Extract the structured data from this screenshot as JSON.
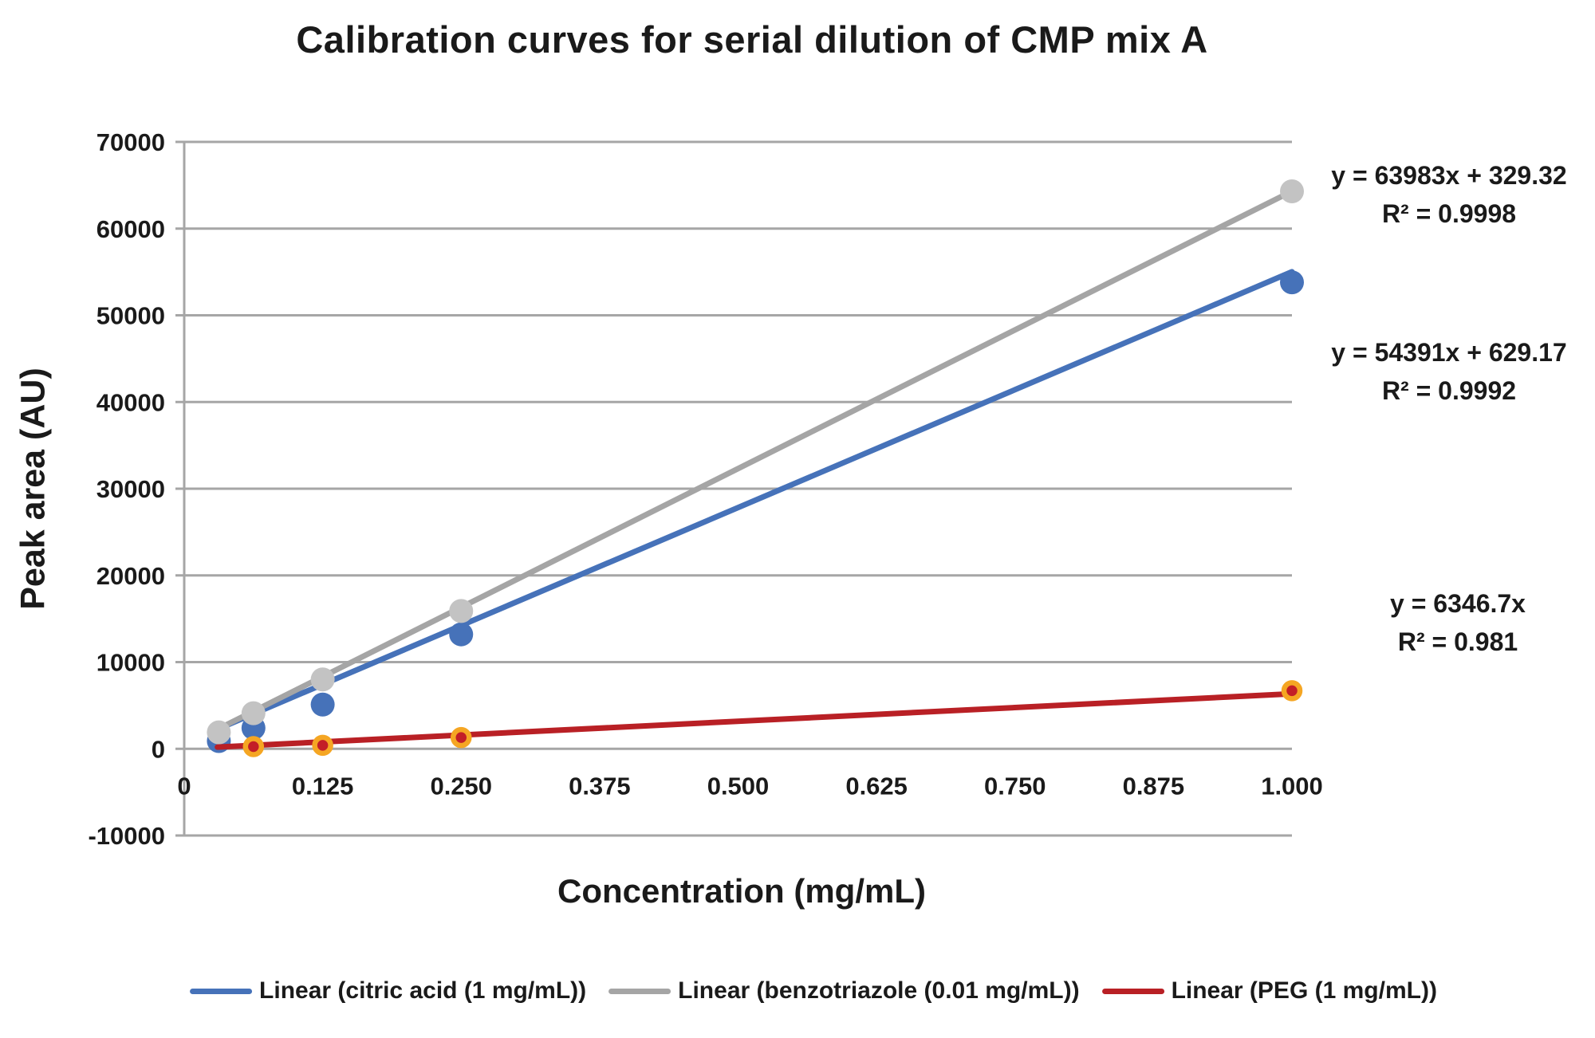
{
  "chart": {
    "title": "Calibration curves for serial dilution of CMP mix A",
    "x_axis_title": "Concentration (mg/mL)",
    "y_axis_title": "Peak area (AU)"
  },
  "style": {
    "grid_color": "#A6A6A6",
    "axis_color": "#A6A6A6",
    "text_color": "#1A1A1A",
    "background": "#FFFFFF"
  },
  "chart_data": {
    "type": "scatter",
    "title": "Calibration curves for serial dilution of CMP mix A",
    "xlabel": "Concentration (mg/mL)",
    "ylabel": "Peak area (AU)",
    "xlim": [
      0,
      1.0
    ],
    "ylim": [
      -10000,
      70000
    ],
    "grid": "horizontal",
    "legend_position": "bottom",
    "x_ticks": [
      {
        "label": "0",
        "value": 0
      },
      {
        "label": "0.125",
        "value": 0.125
      },
      {
        "label": "0.250",
        "value": 0.25
      },
      {
        "label": "0.375",
        "value": 0.375
      },
      {
        "label": "0.500",
        "value": 0.5
      },
      {
        "label": "0.625",
        "value": 0.625
      },
      {
        "label": "0.750",
        "value": 0.75
      },
      {
        "label": "0.875",
        "value": 0.875
      },
      {
        "label": "1.000",
        "value": 1.0
      }
    ],
    "y_ticks": [
      {
        "label": "70000",
        "value": 70000
      },
      {
        "label": "60000",
        "value": 60000
      },
      {
        "label": "50000",
        "value": 50000
      },
      {
        "label": "40000",
        "value": 40000
      },
      {
        "label": "30000",
        "value": 30000
      },
      {
        "label": "20000",
        "value": 20000
      },
      {
        "label": "10000",
        "value": 10000
      },
      {
        "label": "0",
        "value": 0
      },
      {
        "label": "-10000",
        "value": -10000
      }
    ],
    "series": [
      {
        "key": "citric-acid",
        "name": "citric acid (1 mg/mL)",
        "legend_label": "Linear (citric acid (1 mg/mL))",
        "line_color": "#4672B9",
        "marker_color": "#4672B9",
        "marker_ring_color": null,
        "points": [
          [
            0.03125,
            900
          ],
          [
            0.0625,
            2400
          ],
          [
            0.125,
            5100
          ],
          [
            0.25,
            13200
          ],
          [
            1.0,
            53800
          ]
        ],
        "trendline": {
          "slope": 54391,
          "intercept": 629.17,
          "x_start": 0.03,
          "x_end": 1.0
        },
        "equation_label": "y = 54391x + 629.17",
        "r2_label": "R² = 0.9992",
        "r2_value": 0.9992
      },
      {
        "key": "benzotriazole",
        "name": "benzotriazole (0.01 mg/mL)",
        "legend_label": "Linear (benzotriazole (0.01 mg/mL))",
        "line_color": "#A5A5A5",
        "marker_color": "#C3C3C3",
        "marker_ring_color": null,
        "points": [
          [
            0.03125,
            1900
          ],
          [
            0.0625,
            4100
          ],
          [
            0.125,
            8000
          ],
          [
            0.25,
            15900
          ],
          [
            1.0,
            64300
          ]
        ],
        "trendline": {
          "slope": 63983,
          "intercept": 329.32,
          "x_start": 0.03,
          "x_end": 1.0
        },
        "equation_label": "y = 63983x + 329.32",
        "r2_label": "R² = 0.9998",
        "r2_value": 0.9998
      },
      {
        "key": "peg",
        "name": "PEG (1 mg/mL)",
        "legend_label": "Linear (PEG (1 mg/mL))",
        "line_color": "#B92025",
        "marker_color": "#C31E27",
        "marker_ring_color": "#F5A623",
        "points": [
          [
            0.0625,
            250
          ],
          [
            0.125,
            400
          ],
          [
            0.25,
            1300
          ],
          [
            1.0,
            6700
          ]
        ],
        "trendline": {
          "slope": 6346.7,
          "intercept": 0,
          "x_start": 0.03,
          "x_end": 1.0
        },
        "equation_label": "y = 6346.7x",
        "r2_label": "R² = 0.981",
        "r2_value": 0.981
      }
    ]
  }
}
